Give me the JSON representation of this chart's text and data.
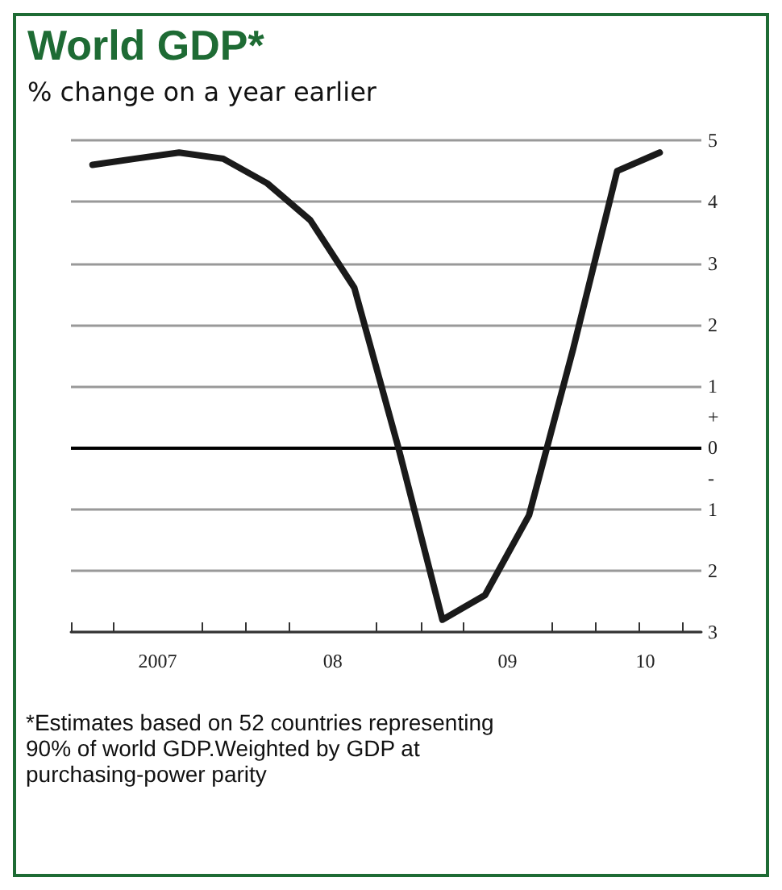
{
  "chart_data": {
    "type": "line",
    "title": "World GDP*",
    "subtitle": "% change on a year earlier",
    "annotations": [
      "*Estimates based on 52 countries representing 90% of world GDP.Weighted by GDP at purchasing-power parity"
    ],
    "x": [
      "2007-02-15",
      "2007-05-15",
      "2007-08-15",
      "2007-11-15",
      "2008-02-15",
      "2008-05-15",
      "2008-08-15",
      "2008-11-15",
      "2009-02-15",
      "2009-05-15",
      "2009-08-15",
      "2009-11-15",
      "2010-02-15",
      "2010-05-15"
    ],
    "series": [
      {
        "color": "#1a1a1a",
        "values": [
          4.6,
          4.7,
          4.8,
          4.7,
          4.3,
          3.7,
          2.6,
          0,
          -2.8,
          -2.4,
          -1.1,
          1.6,
          4.5,
          4.8
        ]
      }
    ],
    "xlim": [
      "2007-01-01",
      "2010-08-10"
    ],
    "xticks": [
      {
        "value": "2007-01-01",
        "label": null
      },
      {
        "value": "2007-04-01",
        "label": null
      },
      {
        "value": "2007-07-01",
        "label": "2007"
      },
      {
        "value": "2007-10-01",
        "label": null
      },
      {
        "value": "2008-01-01",
        "label": null
      },
      {
        "value": "2008-04-01",
        "label": null
      },
      {
        "value": "2008-07-01",
        "label": "08"
      },
      {
        "value": "2008-10-01",
        "label": null
      },
      {
        "value": "2009-01-01",
        "label": null
      },
      {
        "value": "2009-04-01",
        "label": null
      },
      {
        "value": "2009-07-01",
        "label": "09"
      },
      {
        "value": "2009-10-01",
        "label": null
      },
      {
        "value": "2010-01-01",
        "label": null
      },
      {
        "value": "2010-04-01",
        "label": null
      },
      {
        "value": "2010-04-15",
        "label": "10"
      },
      {
        "value": "2010-07-01",
        "label": null
      }
    ],
    "ylim": [
      -3,
      5
    ],
    "yticks": [
      {
        "value": -3,
        "label": "3"
      },
      {
        "value": -2,
        "label": "2"
      },
      {
        "value": -1,
        "label": "1"
      },
      {
        "value": -0.5,
        "label": "-"
      },
      0,
      {
        "value": 0.5,
        "label": "+"
      },
      1,
      2,
      3,
      4,
      5
    ],
    "ref_lines": [
      {
        "axis": "y",
        "value": 0,
        "color": "#000000"
      }
    ],
    "grid": "y",
    "marker": "none",
    "line_style": "solid"
  }
}
